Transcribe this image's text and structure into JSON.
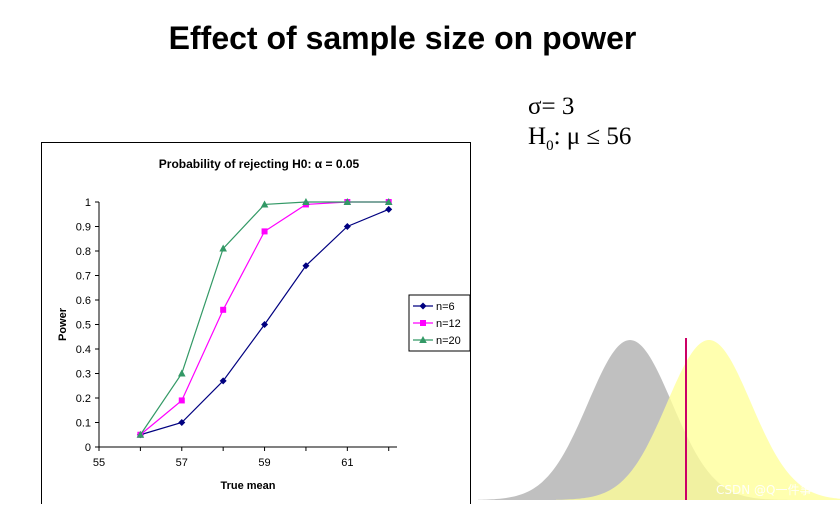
{
  "slide": {
    "title": "Effect of sample size on power",
    "sigma_label": "σ= 3",
    "h0_main": "H",
    "h0_sub": "0",
    "h0_rest": ": μ ≤ 56",
    "watermark": "CSDN @Q一件事"
  },
  "colors": {
    "n6": "#000080",
    "n12": "#ff00ff",
    "n20": "#339966",
    "null_curve": "#c0c0c0",
    "alt_curve": "#ffff99",
    "critical_line": "#cc0066"
  },
  "chart_data": {
    "type": "line",
    "title": "Probability of rejecting H0: α = 0.05",
    "xlabel": "True mean",
    "ylabel": "Power",
    "xlim": [
      55,
      62.2
    ],
    "ylim": [
      0,
      1
    ],
    "xticks": [
      55,
      57,
      59,
      61
    ],
    "yticks": [
      0,
      0.1,
      0.2,
      0.3,
      0.4,
      0.5,
      0.6,
      0.7,
      0.8,
      0.9,
      1
    ],
    "x": [
      56,
      57,
      58,
      59,
      60,
      61,
      62
    ],
    "series": [
      {
        "name": "n=6",
        "marker": "diamond",
        "values": [
          0.05,
          0.1,
          0.27,
          0.5,
          0.74,
          0.9,
          0.97
        ]
      },
      {
        "name": "n=12",
        "marker": "square",
        "values": [
          0.05,
          0.19,
          0.56,
          0.88,
          0.99,
          1.0,
          1.0
        ]
      },
      {
        "name": "n=20",
        "marker": "triangle",
        "values": [
          0.05,
          0.3,
          0.81,
          0.99,
          1.0,
          1.0,
          1.0
        ]
      }
    ],
    "legend_position": "right"
  },
  "distribution_illustration": {
    "null_distribution": "gray",
    "alternative_distribution": "yellow",
    "critical_value_marker": true
  }
}
